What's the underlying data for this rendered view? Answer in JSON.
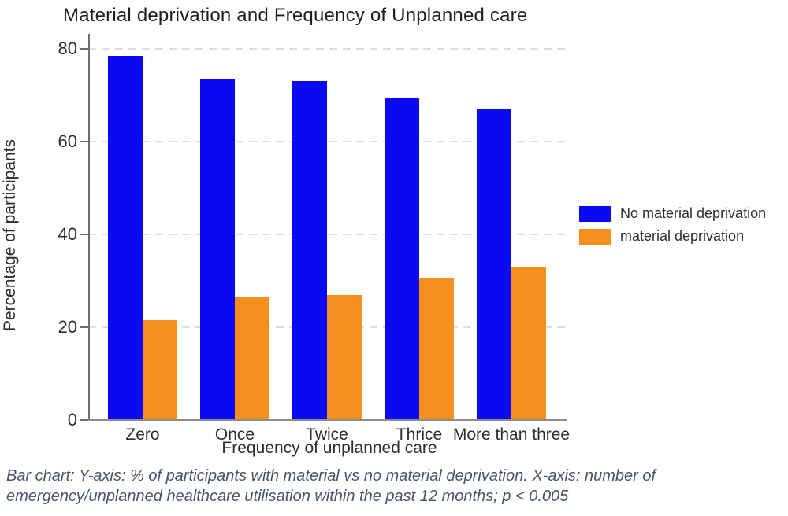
{
  "title": "Material deprivation and Frequency of Unplanned care",
  "caption": {
    "line1": "Bar chart: Y-axis: % of participants with material vs no material deprivation. X-axis: number of",
    "line2": "emergency/unplanned healthcare utilisation within the past 12 months; p < 0.005"
  },
  "colors": {
    "no_material_deprivation": "#0a0af2",
    "material_deprivation": "#f78f1e",
    "gridline": "#dedede",
    "axis": "#6e6e6e",
    "caption_text": "#44546a"
  },
  "chart_data": {
    "type": "bar",
    "title": "Material deprivation and Frequency of Unplanned care",
    "xlabel": "Frequency of unplanned care",
    "ylabel": "Percentage of participants",
    "categories": [
      "Zero",
      "Once",
      "Twice",
      "Thrice",
      "More than three"
    ],
    "series": [
      {
        "name": "No material deprivation",
        "color": "#0a0af2",
        "values": [
          78.5,
          73.5,
          73.0,
          69.5,
          67.0
        ]
      },
      {
        "name": "material deprivation",
        "color": "#f78f1e",
        "values": [
          21.5,
          26.5,
          27.0,
          30.5,
          33.0
        ]
      }
    ],
    "ylim": [
      0,
      80
    ],
    "yticks": [
      0,
      20,
      40,
      60,
      80
    ],
    "grid": "horizontal dashed gridlines at 20, 40, 60, 80",
    "legend_position": "right-middle"
  }
}
